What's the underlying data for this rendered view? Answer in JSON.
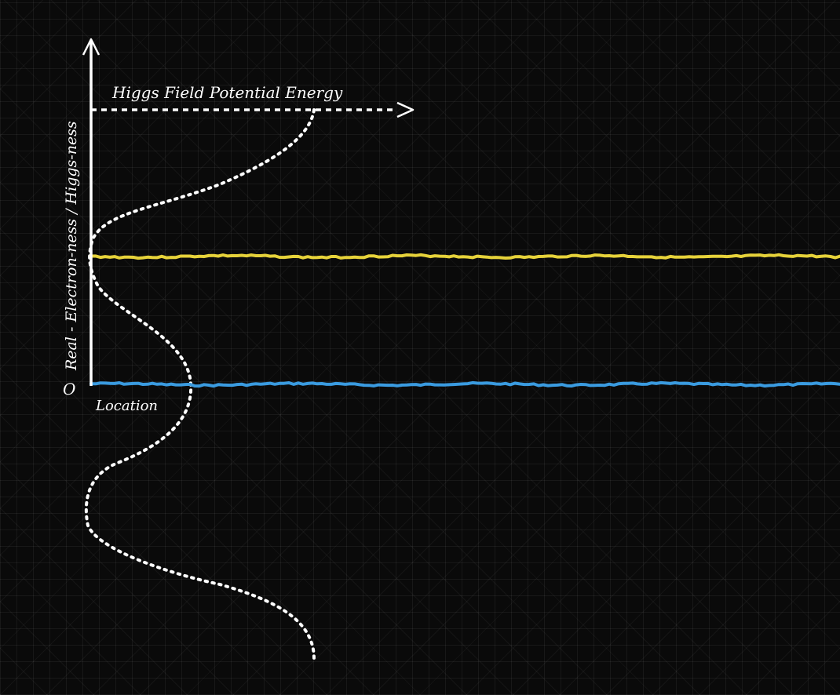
{
  "labels": {
    "origin": "O",
    "y_axis": "Real - Electron-ness / Higgs-ness",
    "x_axis": "Location",
    "potential_axis": "Higgs Field Potential Energy"
  },
  "colors": {
    "background": "#0a0a0a",
    "axis": "#ffffff",
    "potential_curve": "#ffffff",
    "yellow_field": "#e6d23a",
    "blue_field": "#3a9be0"
  },
  "icons": {
    "y_axis_arrow": "arrow-up-icon",
    "potential_axis_arrow": "arrow-right-icon"
  }
}
